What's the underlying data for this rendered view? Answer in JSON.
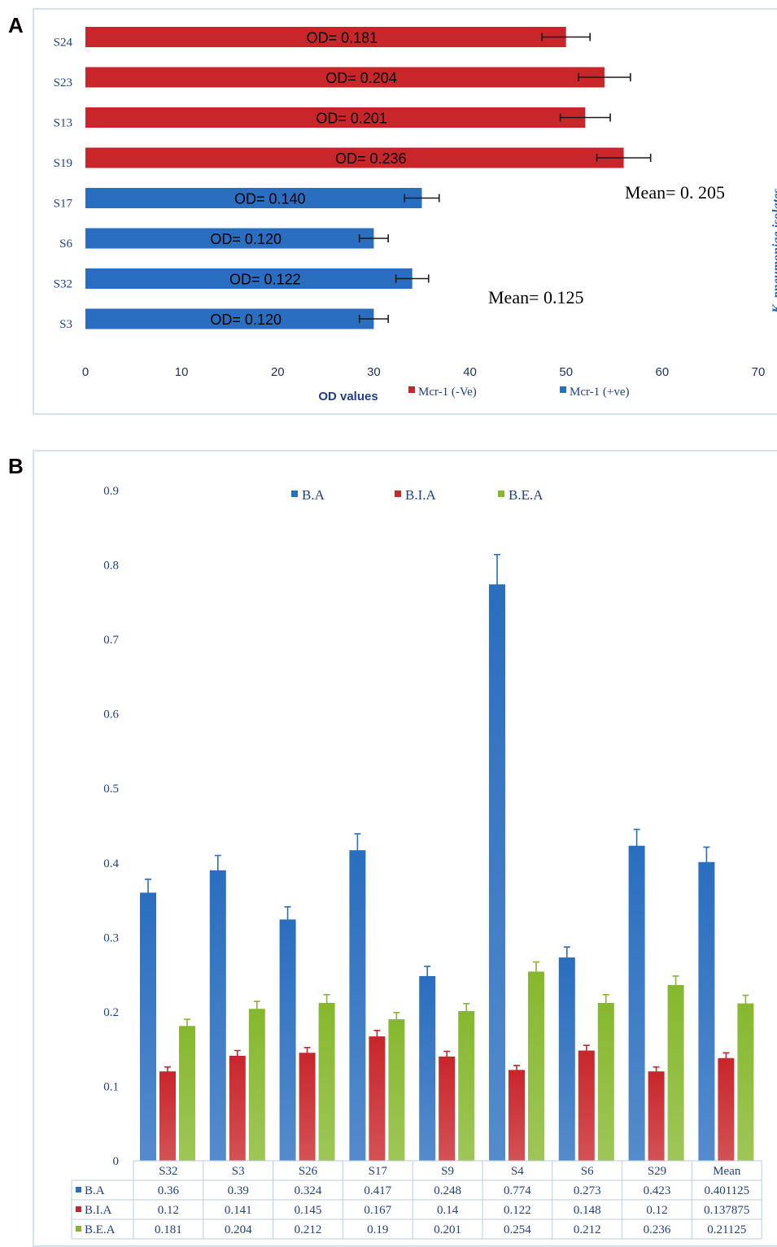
{
  "panel_a": {
    "letter": "A",
    "mean_negative": "Mean= 0. 205",
    "mean_positive": "Mean= 0.125",
    "side_label": "K. pneumoniae isolates",
    "chart_data": {
      "type": "bar",
      "orientation": "horizontal",
      "xlabel": "OD values",
      "xlim": [
        0,
        70
      ],
      "xticks": [
        0,
        10,
        20,
        30,
        40,
        50,
        60,
        70
      ],
      "legend": [
        "Mcr-1 (-Ve)",
        "Mcr-1 (+ve)"
      ],
      "legend_position": "bottom",
      "colors": {
        "Mcr-1 (-Ve)": "#c8262b",
        "Mcr-1 (+ve)": "#2a6ebf"
      },
      "bars": [
        {
          "category": "S24",
          "group": "Mcr-1 (-Ve)",
          "value": 50,
          "error": 2.5,
          "label": "OD= 0.181"
        },
        {
          "category": "S23",
          "group": "Mcr-1 (-Ve)",
          "value": 54,
          "error": 2.7,
          "label": "OD= 0.204"
        },
        {
          "category": "S13",
          "group": "Mcr-1 (-Ve)",
          "value": 52,
          "error": 2.6,
          "label": "OD= 0.201"
        },
        {
          "category": "S19",
          "group": "Mcr-1 (-Ve)",
          "value": 56,
          "error": 2.8,
          "label": "OD= 0.236"
        },
        {
          "category": "S17",
          "group": "Mcr-1 (+ve)",
          "value": 35,
          "error": 1.8,
          "label": "OD= 0.140"
        },
        {
          "category": "S6",
          "group": "Mcr-1 (+ve)",
          "value": 30,
          "error": 1.5,
          "label": "OD= 0.120"
        },
        {
          "category": "S32",
          "group": "Mcr-1 (+ve)",
          "value": 34,
          "error": 1.7,
          "label": "OD= 0.122"
        },
        {
          "category": "S3",
          "group": "Mcr-1 (+ve)",
          "value": 30,
          "error": 1.5,
          "label": "OD= 0.120"
        }
      ]
    }
  },
  "panel_b": {
    "letter": "B",
    "chart_data": {
      "type": "bar",
      "ylim": [
        0,
        0.9
      ],
      "yticks": [
        "0",
        "0.1",
        "0.2",
        "0.3",
        "0.4",
        "0.5",
        "0.6",
        "0.7",
        "0.8",
        "0.9"
      ],
      "legend_position": "top",
      "categories": [
        "S32",
        "S3",
        "S26",
        "S17",
        "S9",
        "S4",
        "S6",
        "S29",
        "Mean"
      ],
      "series": [
        {
          "name": "B.A",
          "color": "#2a6ebf",
          "values": [
            0.36,
            0.39,
            0.324,
            0.417,
            0.248,
            0.774,
            0.273,
            0.423,
            0.401125
          ],
          "errors": [
            0.018,
            0.02,
            0.017,
            0.022,
            0.013,
            0.04,
            0.014,
            0.022,
            0.02
          ]
        },
        {
          "name": "B.I.A",
          "color": "#c8262b",
          "values": [
            0.12,
            0.141,
            0.145,
            0.167,
            0.14,
            0.122,
            0.148,
            0.12,
            0.137875
          ],
          "errors": [
            0.006,
            0.007,
            0.007,
            0.008,
            0.007,
            0.006,
            0.007,
            0.006,
            0.007
          ]
        },
        {
          "name": "B.E.A",
          "color": "#86b82e",
          "values": [
            0.181,
            0.204,
            0.212,
            0.19,
            0.201,
            0.254,
            0.212,
            0.236,
            0.21125
          ],
          "errors": [
            0.009,
            0.01,
            0.011,
            0.009,
            0.01,
            0.013,
            0.011,
            0.012,
            0.011
          ]
        }
      ],
      "table": [
        [
          "0.36",
          "0.39",
          "0.324",
          "0.417",
          "0.248",
          "0.774",
          "0.273",
          "0.423",
          "0.401125"
        ],
        [
          "0.12",
          "0.141",
          "0.145",
          "0.167",
          "0.14",
          "0.122",
          "0.148",
          "0.12",
          "0.137875"
        ],
        [
          "0.181",
          "0.204",
          "0.212",
          "0.19",
          "0.201",
          "0.254",
          "0.212",
          "0.236",
          "0.21125"
        ]
      ]
    }
  }
}
